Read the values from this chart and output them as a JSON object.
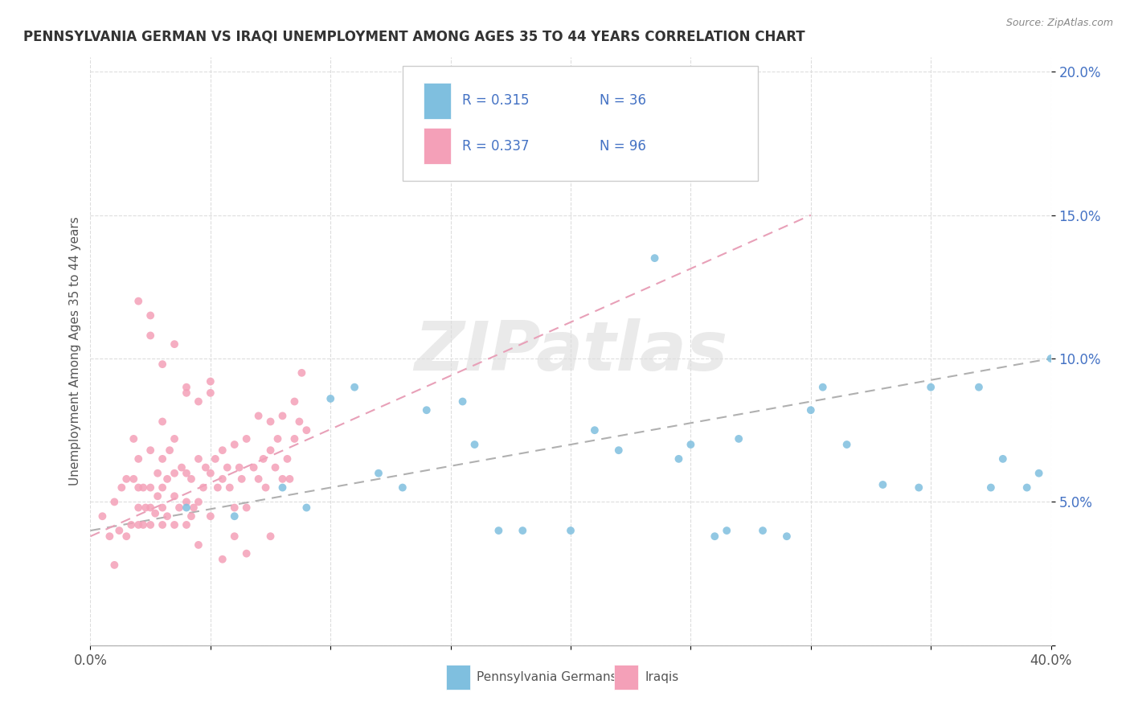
{
  "title": "PENNSYLVANIA GERMAN VS IRAQI UNEMPLOYMENT AMONG AGES 35 TO 44 YEARS CORRELATION CHART",
  "source": "Source: ZipAtlas.com",
  "ylabel": "Unemployment Among Ages 35 to 44 years",
  "xlim": [
    0.0,
    0.4
  ],
  "ylim": [
    0.0,
    0.205
  ],
  "blue_color": "#7fbfdf",
  "pink_color": "#f4a0b8",
  "blue_trend_color": "#b0b0b0",
  "pink_trend_color": "#e8a0b8",
  "R_color": "#4472c4",
  "N_color": "#4472c4",
  "watermark": "ZIPatlas",
  "legend_label1": "Pennsylvania Germans",
  "legend_label2": "Iraqis",
  "blue_x": [
    0.04,
    0.06,
    0.08,
    0.09,
    0.1,
    0.11,
    0.12,
    0.13,
    0.14,
    0.155,
    0.16,
    0.17,
    0.18,
    0.2,
    0.21,
    0.22,
    0.235,
    0.245,
    0.26,
    0.265,
    0.28,
    0.29,
    0.3,
    0.305,
    0.315,
    0.33,
    0.345,
    0.35,
    0.37,
    0.375,
    0.38,
    0.39,
    0.395,
    0.4,
    0.27,
    0.25
  ],
  "blue_y": [
    0.048,
    0.045,
    0.055,
    0.048,
    0.086,
    0.09,
    0.06,
    0.055,
    0.082,
    0.085,
    0.07,
    0.04,
    0.04,
    0.04,
    0.075,
    0.068,
    0.135,
    0.065,
    0.038,
    0.04,
    0.04,
    0.038,
    0.082,
    0.09,
    0.07,
    0.056,
    0.055,
    0.09,
    0.09,
    0.055,
    0.065,
    0.055,
    0.06,
    0.1,
    0.072,
    0.07
  ],
  "pink_x": [
    0.005,
    0.008,
    0.01,
    0.01,
    0.012,
    0.013,
    0.015,
    0.015,
    0.017,
    0.018,
    0.018,
    0.02,
    0.02,
    0.02,
    0.02,
    0.022,
    0.022,
    0.023,
    0.025,
    0.025,
    0.025,
    0.025,
    0.027,
    0.028,
    0.028,
    0.03,
    0.03,
    0.03,
    0.03,
    0.032,
    0.032,
    0.033,
    0.035,
    0.035,
    0.035,
    0.037,
    0.038,
    0.04,
    0.04,
    0.04,
    0.042,
    0.042,
    0.043,
    0.045,
    0.045,
    0.047,
    0.048,
    0.05,
    0.05,
    0.052,
    0.053,
    0.055,
    0.055,
    0.057,
    0.058,
    0.06,
    0.06,
    0.062,
    0.063,
    0.065,
    0.065,
    0.068,
    0.07,
    0.07,
    0.072,
    0.073,
    0.075,
    0.075,
    0.077,
    0.078,
    0.08,
    0.08,
    0.082,
    0.083,
    0.085,
    0.085,
    0.087,
    0.088,
    0.09,
    0.02,
    0.025,
    0.03,
    0.035,
    0.04,
    0.045,
    0.05,
    0.025,
    0.03,
    0.035,
    0.04,
    0.05,
    0.06,
    0.045,
    0.055,
    0.065,
    0.075
  ],
  "pink_y": [
    0.045,
    0.038,
    0.028,
    0.05,
    0.04,
    0.055,
    0.038,
    0.058,
    0.042,
    0.058,
    0.072,
    0.042,
    0.048,
    0.055,
    0.065,
    0.042,
    0.055,
    0.048,
    0.042,
    0.048,
    0.055,
    0.068,
    0.046,
    0.052,
    0.06,
    0.042,
    0.048,
    0.055,
    0.065,
    0.045,
    0.058,
    0.068,
    0.042,
    0.052,
    0.06,
    0.048,
    0.062,
    0.042,
    0.05,
    0.06,
    0.045,
    0.058,
    0.048,
    0.05,
    0.065,
    0.055,
    0.062,
    0.045,
    0.06,
    0.065,
    0.055,
    0.058,
    0.068,
    0.062,
    0.055,
    0.048,
    0.07,
    0.062,
    0.058,
    0.048,
    0.072,
    0.062,
    0.058,
    0.08,
    0.065,
    0.055,
    0.068,
    0.078,
    0.062,
    0.072,
    0.058,
    0.08,
    0.065,
    0.058,
    0.072,
    0.085,
    0.078,
    0.095,
    0.075,
    0.12,
    0.115,
    0.098,
    0.105,
    0.09,
    0.085,
    0.088,
    0.108,
    0.078,
    0.072,
    0.088,
    0.092,
    0.038,
    0.035,
    0.03,
    0.032,
    0.038
  ],
  "blue_trend_x": [
    0.0,
    0.4
  ],
  "blue_trend_y": [
    0.04,
    0.1
  ],
  "pink_trend_x": [
    0.0,
    0.3
  ],
  "pink_trend_y": [
    0.038,
    0.15
  ]
}
